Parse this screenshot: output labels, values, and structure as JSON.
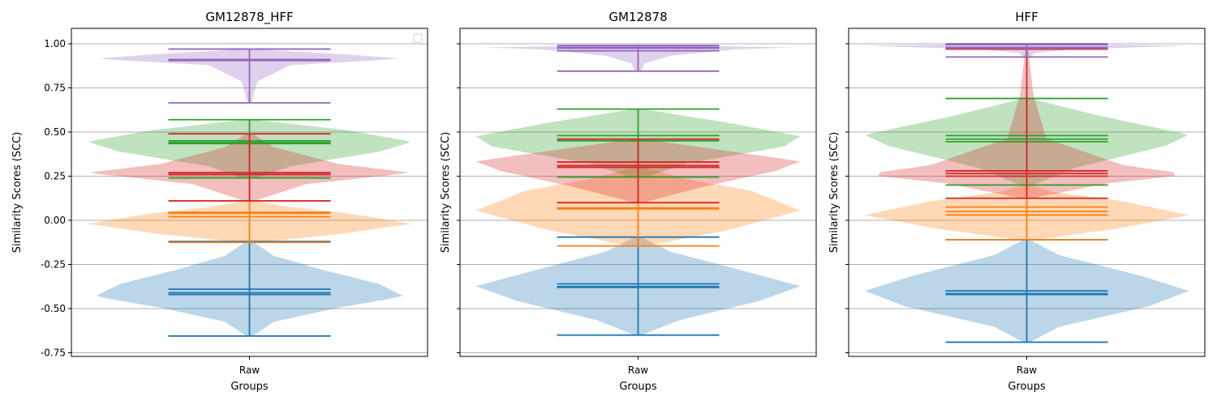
{
  "chart_data": [
    {
      "type": "violin",
      "title": "GM12878_HFF",
      "xlabel": "Groups",
      "ylabel": "Similarity Scores (SCC)",
      "categories": [
        "Raw"
      ],
      "ylim": [
        -0.78,
        1.08
      ],
      "yticks": [
        "-0.75",
        "-0.50",
        "-0.25",
        "0.00",
        "0.25",
        "0.50",
        "0.75",
        "1.00"
      ],
      "grid": "y",
      "legend": "top-right (empty)",
      "violins": [
        {
          "color": "#1f77b4",
          "min": -0.655,
          "max": -0.12,
          "mean": -0.39,
          "median": -0.41,
          "mode": -0.42
        },
        {
          "color": "#ff7f0e",
          "min": -0.125,
          "max": 0.11,
          "mean": 0.04,
          "median": 0.045,
          "mode": 0.02
        },
        {
          "color": "#2ca02c",
          "min": 0.24,
          "max": 0.57,
          "mean": 0.435,
          "median": 0.44,
          "mode": 0.45
        },
        {
          "color": "#d62728",
          "min": 0.11,
          "max": 0.49,
          "mean": 0.27,
          "median": 0.26,
          "mode": 0.26
        },
        {
          "color": "#9467bd",
          "min": 0.665,
          "max": 0.97,
          "mean": 0.905,
          "median": 0.91,
          "mode": 0.91
        }
      ]
    },
    {
      "type": "violin",
      "title": "GM12878",
      "xlabel": "Groups",
      "ylabel": "Similarity Scores (SCC)",
      "categories": [
        "Raw"
      ],
      "ylim": [
        -0.78,
        1.08
      ],
      "grid": "y",
      "violins": [
        {
          "color": "#1f77b4",
          "min": -0.65,
          "max": -0.095,
          "mean": -0.36,
          "median": -0.375,
          "mode": -0.38
        },
        {
          "color": "#ff7f0e",
          "min": -0.145,
          "max": 0.3,
          "mean": 0.065,
          "median": 0.07,
          "mode": 0.07
        },
        {
          "color": "#2ca02c",
          "min": 0.245,
          "max": 0.63,
          "mean": 0.45,
          "median": 0.46,
          "mode": 0.48
        },
        {
          "color": "#d62728",
          "min": 0.1,
          "max": 0.46,
          "mean": 0.31,
          "median": 0.3,
          "mode": 0.33
        },
        {
          "color": "#9467bd",
          "min": 0.845,
          "max": 0.99,
          "mean": 0.96,
          "median": 0.975,
          "mode": 0.98
        }
      ]
    },
    {
      "type": "violin",
      "title": "HFF",
      "xlabel": "Groups",
      "ylabel": "Similarity Scores (SCC)",
      "categories": [
        "Raw"
      ],
      "ylim": [
        -0.78,
        1.08
      ],
      "grid": "y",
      "violins": [
        {
          "color": "#1f77b4",
          "min": -0.69,
          "max": -0.11,
          "mean": -0.4,
          "median": -0.415,
          "mode": -0.42
        },
        {
          "color": "#ff7f0e",
          "min": -0.11,
          "max": 0.2,
          "mean": 0.05,
          "median": 0.075,
          "mode": 0.03
        },
        {
          "color": "#2ca02c",
          "min": 0.2,
          "max": 0.69,
          "mean": 0.445,
          "median": 0.46,
          "mode": 0.48
        },
        {
          "color": "#d62728",
          "min": 0.125,
          "max": 0.97,
          "mean": 0.265,
          "median": 0.28,
          "mode": 0.25
        },
        {
          "color": "#9467bd",
          "min": 0.925,
          "max": 1.0,
          "mean": 0.975,
          "median": 0.995,
          "mode": 0.98
        }
      ]
    }
  ]
}
